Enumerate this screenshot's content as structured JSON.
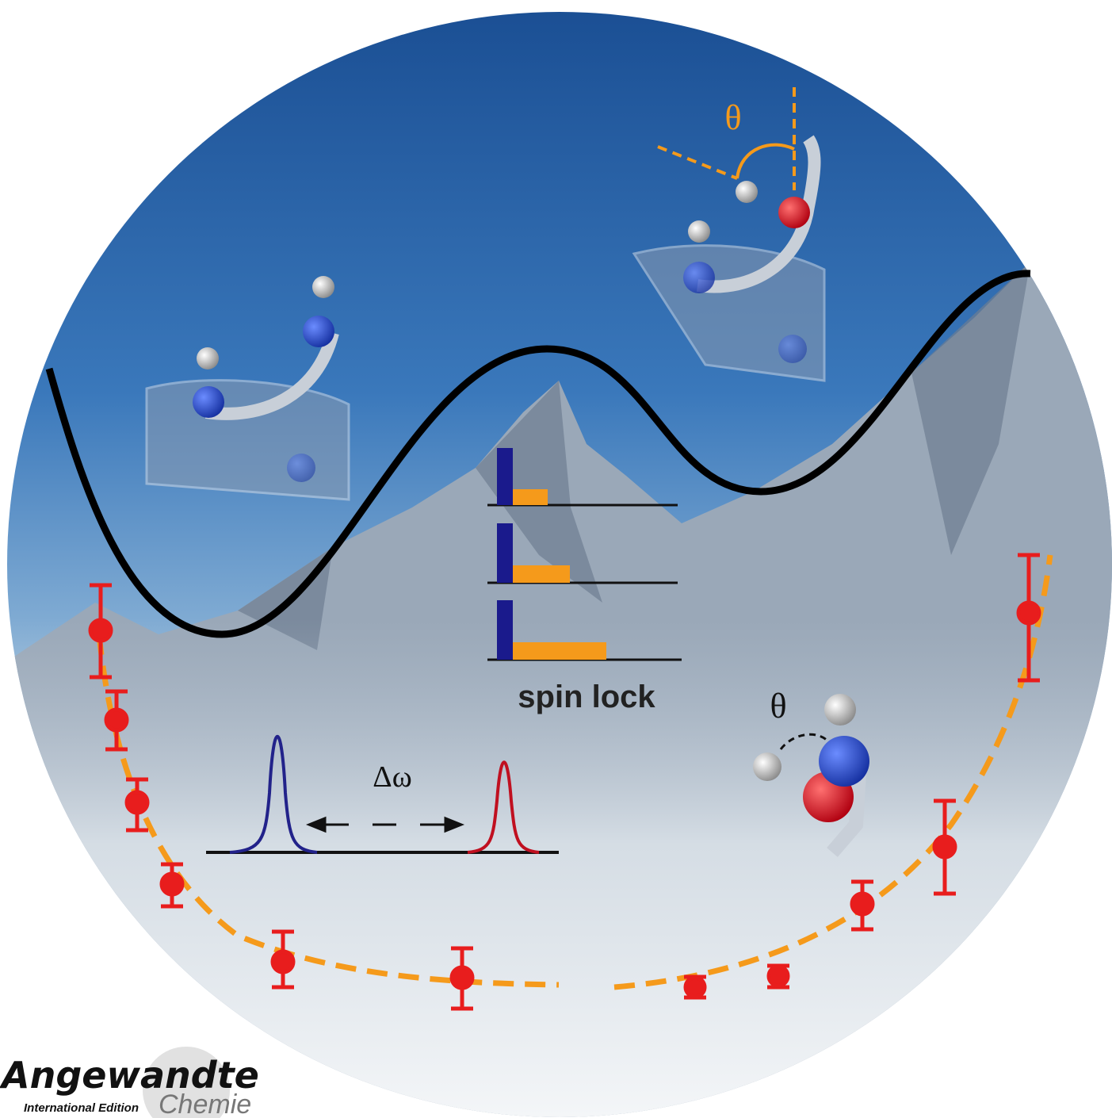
{
  "cover": {
    "theta_top": "θ",
    "theta_side": "θ",
    "spin_lock": "spin lock",
    "delta_omega": "Δω"
  },
  "logo": {
    "name": "Angewandte",
    "edition": "International Edition",
    "sub": "Chemie"
  }
}
